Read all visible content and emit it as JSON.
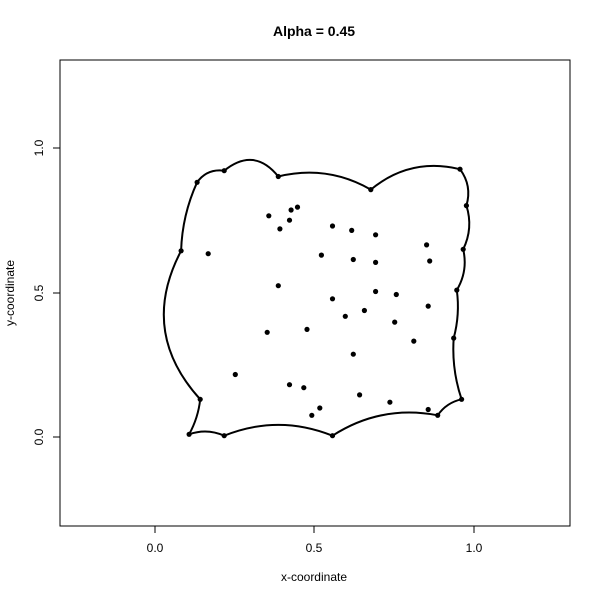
{
  "chart_data": {
    "type": "scatter",
    "title": "Alpha = 0.45",
    "xlabel": "x-coordinate",
    "ylabel": "y-coordinate",
    "xlim": [
      -0.3,
      1.3
    ],
    "ylim": [
      -0.3,
      1.3
    ],
    "x_ticks": [
      0.0,
      0.5,
      1.0
    ],
    "y_ticks": [
      0.0,
      0.5,
      1.0
    ],
    "x_tick_labels": [
      "0.0",
      "0.5",
      "1.0"
    ],
    "y_tick_labels": [
      "0.0",
      "0.5",
      "1.0"
    ],
    "grid": false,
    "points": [
      [
        0.13,
        0.88
      ],
      [
        0.215,
        0.92
      ],
      [
        0.385,
        0.9
      ],
      [
        0.675,
        0.855
      ],
      [
        0.955,
        0.925
      ],
      [
        0.975,
        0.8
      ],
      [
        0.965,
        0.65
      ],
      [
        0.945,
        0.51
      ],
      [
        0.935,
        0.345
      ],
      [
        0.96,
        0.135
      ],
      [
        0.885,
        0.08
      ],
      [
        0.855,
        0.1
      ],
      [
        0.735,
        0.125
      ],
      [
        0.555,
        0.01
      ],
      [
        0.215,
        0.01
      ],
      [
        0.105,
        0.015
      ],
      [
        0.14,
        0.135
      ],
      [
        0.08,
        0.645
      ],
      [
        0.165,
        0.635
      ],
      [
        0.355,
        0.765
      ],
      [
        0.425,
        0.785
      ],
      [
        0.445,
        0.795
      ],
      [
        0.42,
        0.75
      ],
      [
        0.39,
        0.72
      ],
      [
        0.555,
        0.73
      ],
      [
        0.615,
        0.715
      ],
      [
        0.69,
        0.7
      ],
      [
        0.52,
        0.63
      ],
      [
        0.62,
        0.615
      ],
      [
        0.69,
        0.605
      ],
      [
        0.85,
        0.665
      ],
      [
        0.86,
        0.61
      ],
      [
        0.385,
        0.525
      ],
      [
        0.555,
        0.48
      ],
      [
        0.69,
        0.505
      ],
      [
        0.755,
        0.495
      ],
      [
        0.595,
        0.42
      ],
      [
        0.655,
        0.44
      ],
      [
        0.75,
        0.4
      ],
      [
        0.855,
        0.455
      ],
      [
        0.81,
        0.335
      ],
      [
        0.35,
        0.365
      ],
      [
        0.475,
        0.375
      ],
      [
        0.62,
        0.29
      ],
      [
        0.25,
        0.22
      ],
      [
        0.42,
        0.185
      ],
      [
        0.465,
        0.175
      ],
      [
        0.64,
        0.15
      ],
      [
        0.515,
        0.105
      ],
      [
        0.49,
        0.08
      ]
    ],
    "hull_edges": [
      [
        0.13,
        0.88,
        0.215,
        0.92,
        0.3
      ],
      [
        0.215,
        0.92,
        0.385,
        0.9,
        0.5
      ],
      [
        0.385,
        0.9,
        0.675,
        0.855,
        0.2
      ],
      [
        0.675,
        0.855,
        0.955,
        0.925,
        0.25
      ],
      [
        0.955,
        0.925,
        0.975,
        0.8,
        0.25
      ],
      [
        0.975,
        0.8,
        0.965,
        0.65,
        0.2
      ],
      [
        0.965,
        0.65,
        0.945,
        0.51,
        0.2
      ],
      [
        0.945,
        0.51,
        0.935,
        0.345,
        0.1
      ],
      [
        0.935,
        0.345,
        0.96,
        0.135,
        -0.1
      ],
      [
        0.96,
        0.135,
        0.885,
        0.08,
        -0.2
      ],
      [
        0.885,
        0.08,
        0.555,
        0.01,
        -0.2
      ],
      [
        0.555,
        0.01,
        0.215,
        0.01,
        -0.2
      ],
      [
        0.215,
        0.01,
        0.105,
        0.015,
        -0.2
      ],
      [
        0.105,
        0.015,
        0.14,
        0.135,
        -0.1
      ],
      [
        0.14,
        0.135,
        0.08,
        0.645,
        0.35
      ],
      [
        0.08,
        0.645,
        0.13,
        0.88,
        0.1
      ]
    ]
  }
}
